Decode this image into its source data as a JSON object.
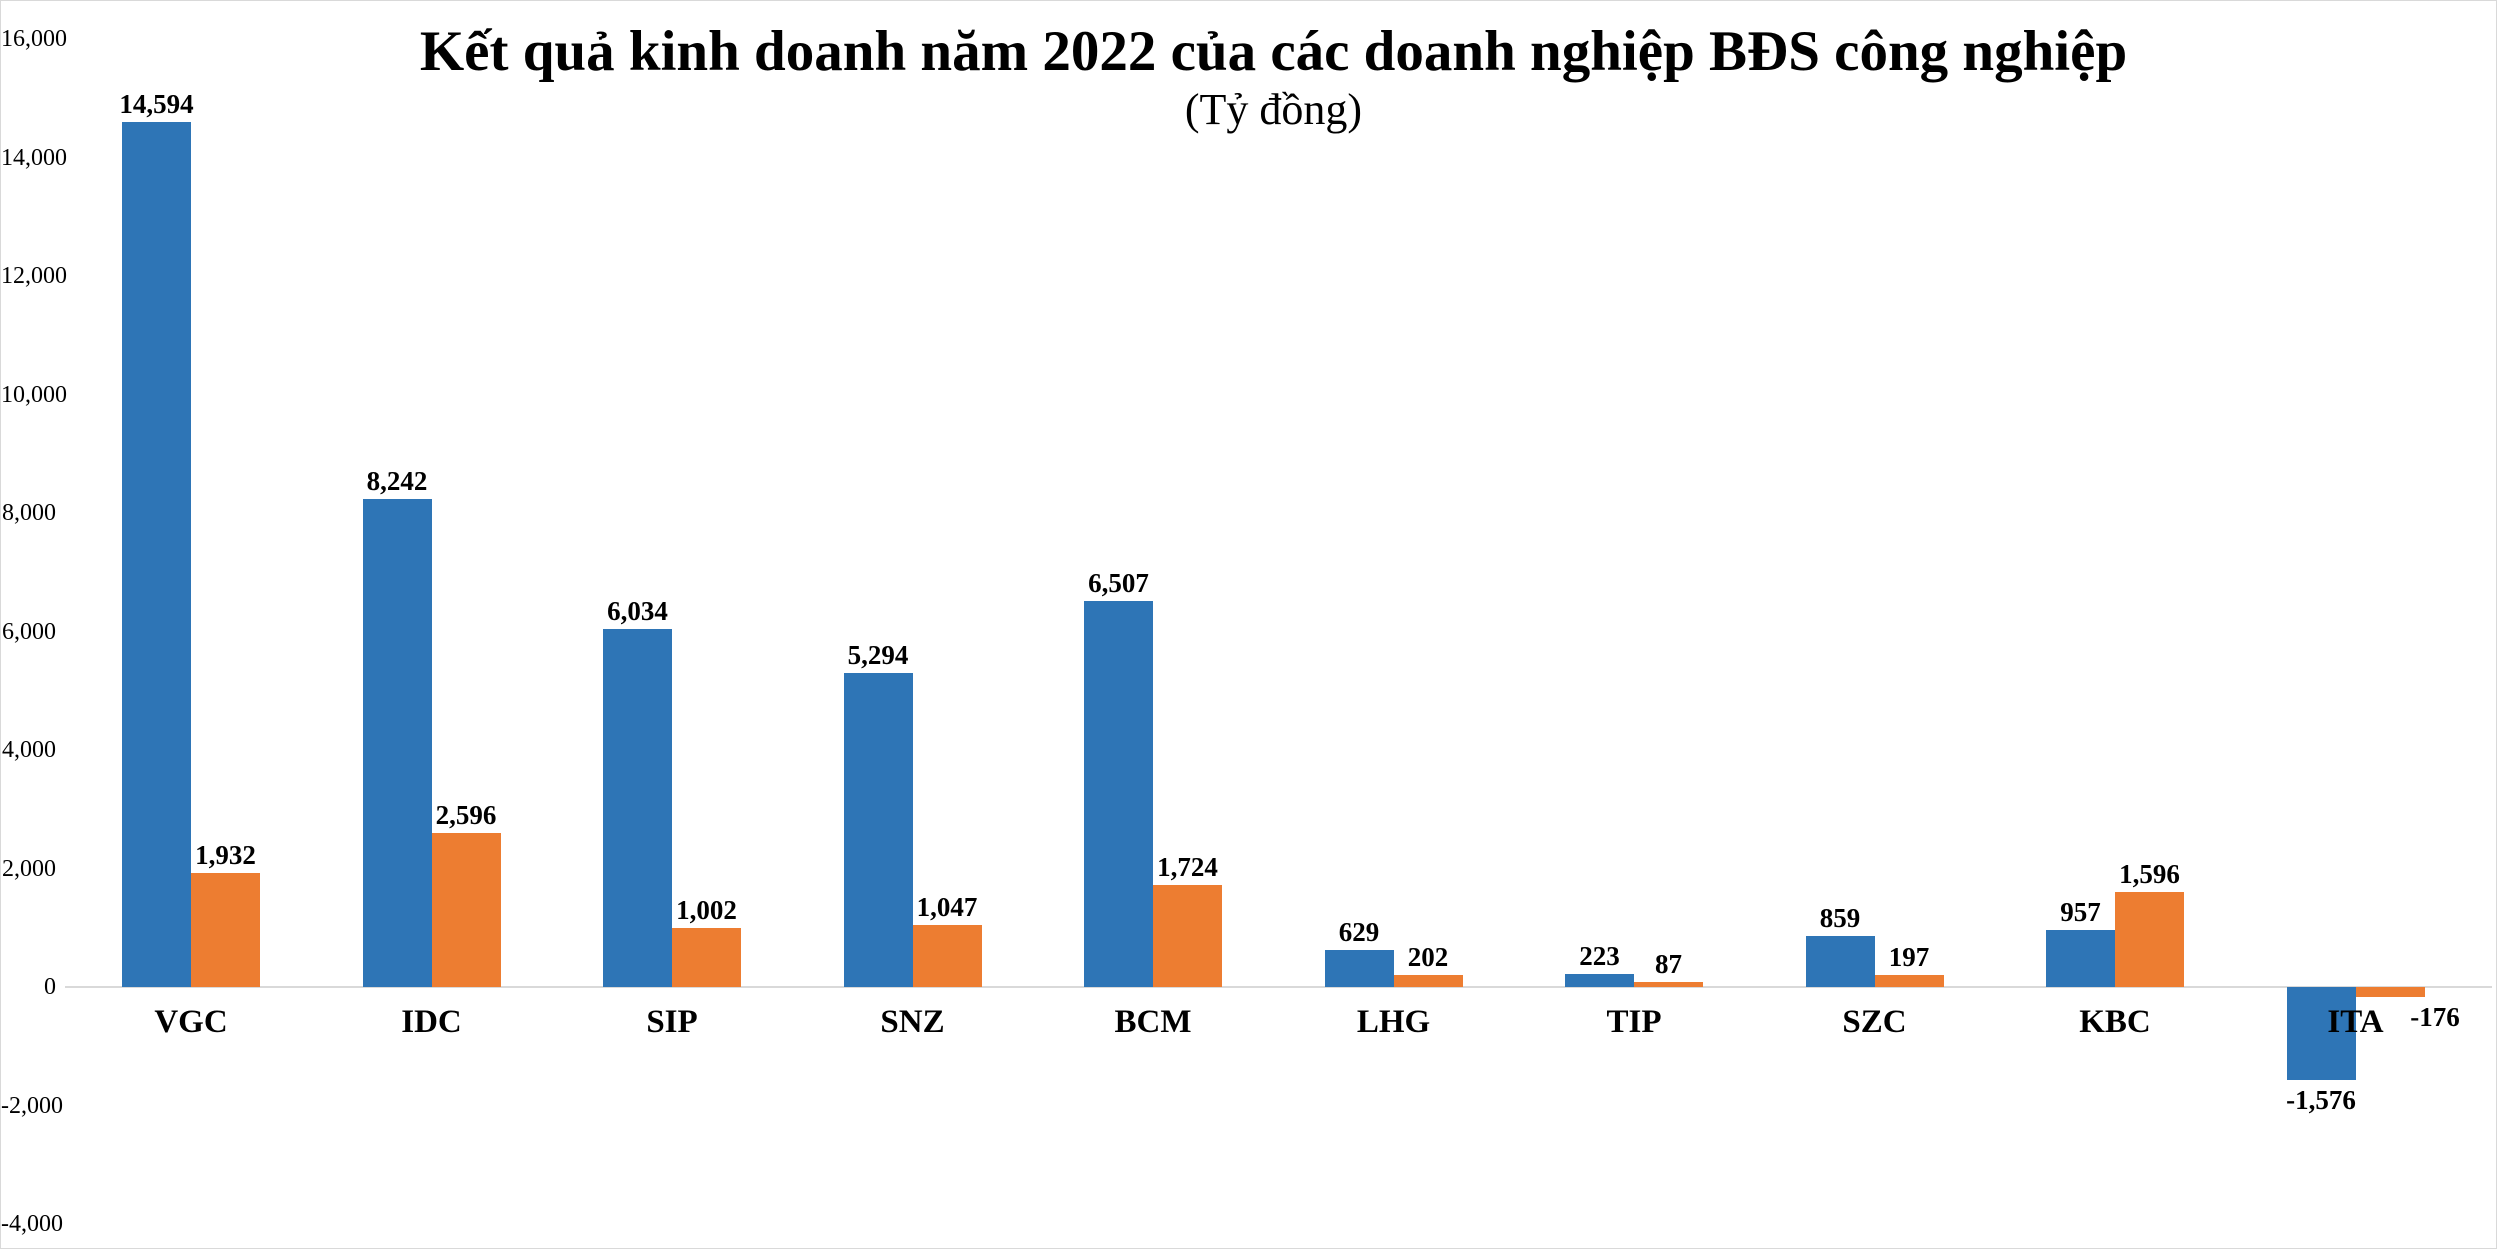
{
  "chart_data": {
    "type": "bar",
    "title": "Kết quả kinh doanh năm 2022 của các doanh nghiệp BĐS công nghiệp",
    "subtitle": "(Tỷ đồng)",
    "categories": [
      "VGC",
      "IDC",
      "SIP",
      "SNZ",
      "BCM",
      "LHG",
      "TIP",
      "SZC",
      "KBC",
      "ITA"
    ],
    "series": [
      {
        "name": "series-1-blue",
        "color": "#2E75B6",
        "values": [
          14594,
          8242,
          6034,
          5294,
          6507,
          629,
          223,
          859,
          957,
          -1576
        ],
        "labels": [
          "14,594",
          "8,242",
          "6,034",
          "5,294",
          "6,507",
          "629",
          "223",
          "859",
          "957",
          "-1,576"
        ]
      },
      {
        "name": "series-2-orange",
        "color": "#ED7D31",
        "values": [
          1932,
          2596,
          1002,
          1047,
          1724,
          202,
          87,
          197,
          1596,
          -176
        ],
        "labels": [
          "1,932",
          "2,596",
          "1,002",
          "1,047",
          "1,724",
          "202",
          "87",
          "197",
          "1,596",
          "-176"
        ]
      }
    ],
    "ylim": [
      -4000,
      16000
    ],
    "ytick_step": 2000,
    "ytick_labels": [
      "16,000",
      "14,000",
      "12,000",
      "10,000",
      "8,000",
      "6,000",
      "4,000",
      "2,000",
      "0",
      "-2,000",
      "-4,000"
    ],
    "grid": false,
    "legend": "none",
    "colors": {
      "bar_blue": "#2E75B6",
      "bar_orange": "#ED7D31",
      "axis_line": "#D9D9D9",
      "text": "#000000",
      "background": "#FFFFFF"
    }
  }
}
